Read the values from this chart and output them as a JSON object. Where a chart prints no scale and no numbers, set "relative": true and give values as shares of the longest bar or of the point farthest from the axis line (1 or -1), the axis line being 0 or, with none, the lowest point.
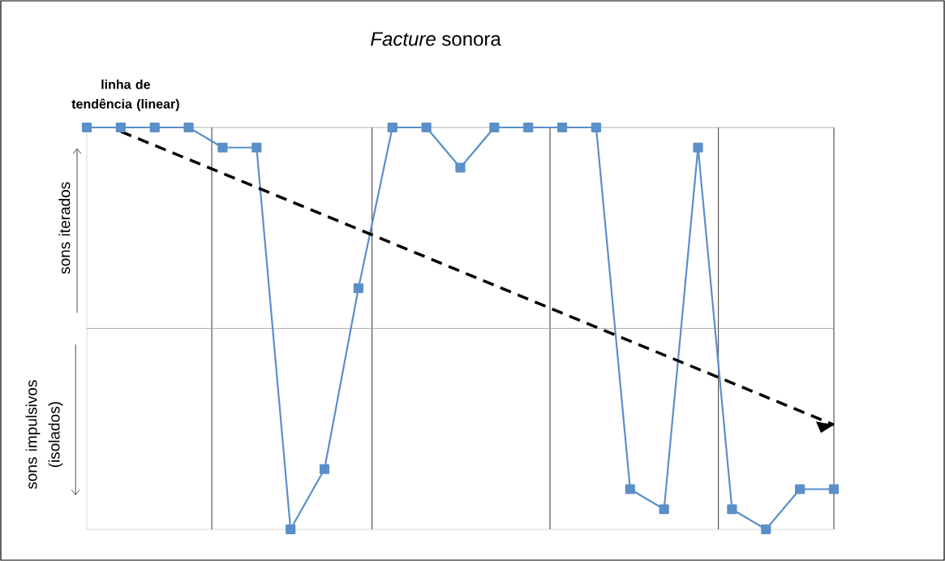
{
  "chart_data": {
    "type": "line",
    "title": "*Facture* sonora",
    "relative": true,
    "marker": "square",
    "categories": [
      null,
      null,
      null,
      null,
      null,
      null,
      null,
      null,
      null,
      null,
      null,
      null,
      null,
      null,
      null,
      null,
      null,
      null,
      null,
      null,
      null,
      null,
      null
    ],
    "series": [
      {
        "color": "#5b8fc9",
        "values": [
          1,
          1,
          1,
          1,
          0.95,
          0.95,
          0,
          0.15,
          0.6,
          1,
          1,
          0.9,
          1,
          1,
          1,
          1,
          0.1,
          0.05,
          0.95,
          0.05,
          0,
          0.1,
          0.1
        ]
      },
      {
        "type": "line",
        "values": [
          null,
          0.99,
          null,
          null,
          null,
          null,
          null,
          null,
          null,
          null,
          null,
          null,
          null,
          null,
          null,
          null,
          null,
          null,
          null,
          null,
          null,
          null,
          0.26
        ],
        "color": "#000000",
        "line_style": "dashed",
        "marker": "none"
      }
    ],
    "ref_lines": [
      {
        "axis": "y",
        "value": 1,
        "color": "#a0a0a0"
      },
      {
        "axis": "y",
        "value": 0.5,
        "color": "#a0a0a0"
      }
    ],
    "annotations": [
      "linha de tendência (linear)",
      "sons iterados",
      "sons impulsivos (isolados)"
    ]
  }
}
